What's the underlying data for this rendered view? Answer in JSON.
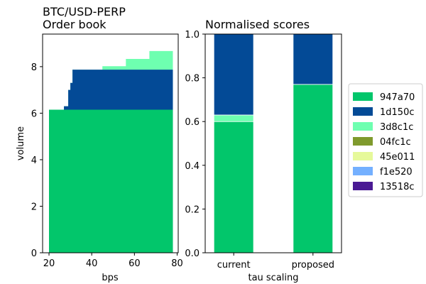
{
  "chart_data": [
    {
      "type": "area",
      "title": "BTC/USD-PERP",
      "subtitle": "Order book",
      "xlabel": "bps",
      "ylabel": "volume",
      "xlim": [
        17,
        80.5
      ],
      "ylim": [
        0,
        9.4
      ],
      "xticks": [
        20,
        40,
        60,
        80
      ],
      "yticks": [
        0,
        2,
        4,
        6,
        8
      ],
      "grid": false,
      "series": [
        {
          "name": "947a70",
          "color": "#02c66b",
          "steps": [
            [
              20,
              6.15
            ],
            [
              78,
              6.15
            ]
          ]
        },
        {
          "name": "1d150c",
          "color": "#034a96",
          "steps": [
            [
              20,
              6.15
            ],
            [
              27,
              6.3
            ],
            [
              29,
              7.0
            ],
            [
              30,
              7.3
            ],
            [
              31,
              7.87
            ],
            [
              78,
              7.87
            ]
          ]
        },
        {
          "name": "3d8c1c",
          "color": "#6effb0",
          "steps": [
            [
              20,
              6.15
            ],
            [
              27,
              6.3
            ],
            [
              29,
              7.0
            ],
            [
              30,
              7.3
            ],
            [
              31,
              7.87
            ],
            [
              45,
              8.02
            ],
            [
              56,
              8.33
            ],
            [
              67,
              8.67
            ],
            [
              78,
              8.67
            ]
          ]
        }
      ]
    },
    {
      "type": "bar",
      "stacked": true,
      "title": "Normalised scores",
      "xlabel": "tau scaling",
      "ylabel": "",
      "categories": [
        "current",
        "proposed"
      ],
      "ylim": [
        0,
        1.0
      ],
      "yticks": [
        "0.0",
        "0.2",
        "0.4",
        "0.6",
        "0.8",
        "1.0"
      ],
      "grid": false,
      "series": [
        {
          "name": "947a70",
          "color": "#02c66b",
          "values": [
            0.6,
            0.77
          ]
        },
        {
          "name": "3d8c1c",
          "color": "#6effb0",
          "values": [
            0.03,
            0.0
          ]
        },
        {
          "name": "1d150c",
          "color": "#034a96",
          "values": [
            0.37,
            0.23
          ]
        }
      ]
    }
  ],
  "legend": {
    "placement": "right",
    "entries": [
      {
        "label": "947a70",
        "color": "#02c66b"
      },
      {
        "label": "1d150c",
        "color": "#034a96"
      },
      {
        "label": "3d8c1c",
        "color": "#6effb0"
      },
      {
        "label": "04fc1c",
        "color": "#7f9a2d"
      },
      {
        "label": "45e011",
        "color": "#e6f99a"
      },
      {
        "label": "f1e520",
        "color": "#74b0ff"
      },
      {
        "label": "13518c",
        "color": "#4a1a94"
      }
    ]
  }
}
